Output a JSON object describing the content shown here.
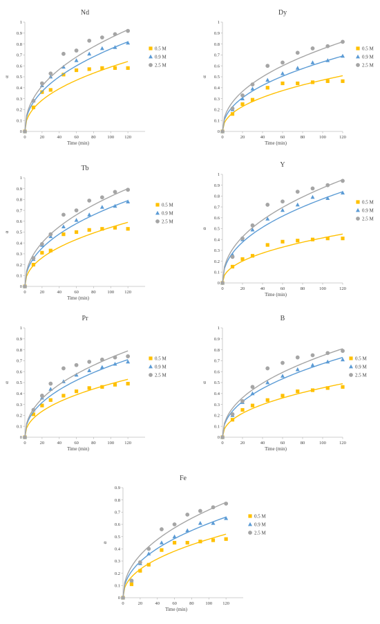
{
  "chart_data": [
    {
      "type": "scatter",
      "title": "Nd",
      "xlabel": "Time (min)",
      "ylabel": "α",
      "xlim": [
        0,
        140
      ],
      "ylim": [
        0,
        1
      ],
      "xticks": [
        "0",
        "20",
        "40",
        "60",
        "80",
        "100",
        "120"
      ],
      "yticks": [
        "0",
        "0.1",
        "0.2",
        "0.3",
        "0.4",
        "0.5",
        "0.6",
        "0.7",
        "0.8",
        "0.9",
        "1"
      ],
      "legend_position": "right",
      "series": [
        {
          "name": "0.5 M",
          "marker": "square",
          "color": "#FFC000",
          "x": [
            0,
            10,
            20,
            30,
            45,
            60,
            75,
            90,
            105,
            120
          ],
          "y": [
            0,
            0.22,
            0.36,
            0.38,
            0.52,
            0.56,
            0.57,
            0.58,
            0.58,
            0.58
          ],
          "fit_end": 0.64
        },
        {
          "name": "0.9 M",
          "marker": "triangle",
          "color": "#5B9BD5",
          "x": [
            0,
            10,
            20,
            30,
            45,
            60,
            75,
            90,
            105,
            120
          ],
          "y": [
            0,
            0.28,
            0.42,
            0.5,
            0.59,
            0.65,
            0.71,
            0.76,
            0.77,
            0.81
          ],
          "fit_end": 0.82
        },
        {
          "name": "2.5 M",
          "marker": "circle",
          "color": "#A5A5A5",
          "x": [
            0,
            10,
            20,
            30,
            45,
            60,
            75,
            90,
            105,
            120
          ],
          "y": [
            0,
            0.28,
            0.44,
            0.53,
            0.71,
            0.74,
            0.83,
            0.86,
            0.89,
            0.92
          ],
          "fit_end": 0.93
        }
      ]
    },
    {
      "type": "scatter",
      "title": "Dy",
      "xlabel": "Time (min)",
      "ylabel": "α",
      "xlim": [
        0,
        120
      ],
      "ylim": [
        0,
        1
      ],
      "xticks": [
        "0",
        "20",
        "40",
        "60",
        "80",
        "100",
        "120"
      ],
      "yticks": [
        "0",
        "0.1",
        "0.2",
        "0.3",
        "0.4",
        "0.5",
        "0.6",
        "0.7",
        "0.8",
        "0.9",
        "1"
      ],
      "legend_position": "right",
      "series": [
        {
          "name": "0.5 M",
          "marker": "square",
          "color": "#FFC000",
          "x": [
            0,
            10,
            20,
            30,
            45,
            60,
            75,
            90,
            105,
            120
          ],
          "y": [
            0,
            0.16,
            0.25,
            0.29,
            0.4,
            0.44,
            0.44,
            0.45,
            0.46,
            0.46
          ],
          "fit_end": 0.51
        },
        {
          "name": "0.9 M",
          "marker": "triangle",
          "color": "#5B9BD5",
          "x": [
            0,
            10,
            20,
            30,
            45,
            60,
            75,
            90,
            105,
            120
          ],
          "y": [
            0,
            0.2,
            0.3,
            0.39,
            0.47,
            0.53,
            0.58,
            0.63,
            0.65,
            0.69
          ],
          "fit_end": 0.69
        },
        {
          "name": "2.5 M",
          "marker": "circle",
          "color": "#A5A5A5",
          "x": [
            0,
            10,
            20,
            30,
            45,
            60,
            75,
            90,
            105,
            120
          ],
          "y": [
            0,
            0.21,
            0.33,
            0.43,
            0.6,
            0.63,
            0.72,
            0.76,
            0.78,
            0.82
          ],
          "fit_end": 0.82
        }
      ]
    },
    {
      "type": "scatter",
      "title": "Tb",
      "xlabel": "Time (min)",
      "ylabel": "α",
      "xlim": [
        0,
        140
      ],
      "ylim": [
        0,
        1
      ],
      "xticks": [
        "0",
        "20",
        "40",
        "60",
        "80",
        "100",
        "120"
      ],
      "yticks": [
        "0",
        "0.1",
        "0.2",
        "0.3",
        "0.4",
        "0.5",
        "0.6",
        "0.7",
        "0.8",
        "0.9",
        "1"
      ],
      "legend_position": "right",
      "series": [
        {
          "name": "0.5 M",
          "marker": "square",
          "color": "#FFC000",
          "x": [
            0,
            10,
            20,
            30,
            45,
            60,
            75,
            90,
            105,
            120
          ],
          "y": [
            0,
            0.2,
            0.31,
            0.33,
            0.48,
            0.5,
            0.52,
            0.53,
            0.54,
            0.53
          ],
          "fit_end": 0.59
        },
        {
          "name": "0.9 M",
          "marker": "triangle",
          "color": "#5B9BD5",
          "x": [
            0,
            10,
            20,
            30,
            45,
            60,
            75,
            90,
            105,
            120
          ],
          "y": [
            0,
            0.25,
            0.38,
            0.46,
            0.55,
            0.61,
            0.66,
            0.73,
            0.74,
            0.78
          ],
          "fit_end": 0.79
        },
        {
          "name": "2.5 M",
          "marker": "circle",
          "color": "#A5A5A5",
          "x": [
            0,
            10,
            20,
            30,
            45,
            60,
            75,
            90,
            105,
            120
          ],
          "y": [
            0,
            0.26,
            0.39,
            0.48,
            0.66,
            0.7,
            0.79,
            0.82,
            0.87,
            0.89
          ],
          "fit_end": 0.9
        }
      ]
    },
    {
      "type": "scatter",
      "title": "Y",
      "xlabel": "Time (min)",
      "ylabel": "α",
      "xlim": [
        0,
        120
      ],
      "ylim": [
        0,
        1
      ],
      "xticks": [
        "0",
        "20",
        "40",
        "60",
        "80",
        "100",
        "120"
      ],
      "yticks": [
        "0",
        "0.1",
        "0.2",
        "0.3",
        "0.4",
        "0.5",
        "0.6",
        "0.7",
        "0.8",
        "0.9",
        "1"
      ],
      "legend_position": "right",
      "series": [
        {
          "name": "0.5 M",
          "marker": "square",
          "color": "#FFC000",
          "x": [
            0,
            10,
            20,
            30,
            45,
            60,
            75,
            90,
            105,
            120
          ],
          "y": [
            0,
            0.15,
            0.22,
            0.25,
            0.35,
            0.38,
            0.39,
            0.4,
            0.41,
            0.41
          ],
          "fit_end": 0.45
        },
        {
          "name": "0.9 M",
          "marker": "triangle",
          "color": "#5B9BD5",
          "x": [
            0,
            10,
            20,
            30,
            45,
            60,
            75,
            90,
            105,
            120
          ],
          "y": [
            0,
            0.26,
            0.4,
            0.49,
            0.59,
            0.67,
            0.72,
            0.79,
            0.78,
            0.83
          ],
          "fit_end": 0.84
        },
        {
          "name": "2.5 M",
          "marker": "circle",
          "color": "#A5A5A5",
          "x": [
            0,
            10,
            20,
            30,
            45,
            60,
            75,
            90,
            105,
            120
          ],
          "y": [
            0,
            0.24,
            0.41,
            0.53,
            0.72,
            0.75,
            0.84,
            0.87,
            0.9,
            0.94
          ],
          "fit_end": 0.95
        }
      ]
    },
    {
      "type": "scatter",
      "title": "Pr",
      "xlabel": "Time (min)",
      "ylabel": "α",
      "xlim": [
        0,
        140
      ],
      "ylim": [
        0,
        1
      ],
      "xticks": [
        "0",
        "20",
        "40",
        "60",
        "80",
        "100",
        "120"
      ],
      "yticks": [
        "0",
        "0.1",
        "0.2",
        "0.3",
        "0.4",
        "0.5",
        "0.6",
        "0.7",
        "0.8",
        "0.9",
        "1"
      ],
      "legend_position": "right",
      "series": [
        {
          "name": "0.5 M",
          "marker": "square",
          "color": "#FFC000",
          "x": [
            0,
            10,
            20,
            30,
            45,
            60,
            75,
            90,
            105,
            120
          ],
          "y": [
            0,
            0.21,
            0.29,
            0.34,
            0.38,
            0.42,
            0.45,
            0.46,
            0.48,
            0.49
          ],
          "fit_end": 0.53
        },
        {
          "name": "0.9 M",
          "marker": "triangle",
          "color": "#5B9BD5",
          "x": [
            0,
            10,
            20,
            30,
            45,
            60,
            75,
            90,
            105,
            120
          ],
          "y": [
            0,
            0.25,
            0.36,
            0.44,
            0.51,
            0.57,
            0.61,
            0.64,
            0.67,
            0.69
          ],
          "fit_end": 0.71
        },
        {
          "name": "2.5 M",
          "marker": "circle",
          "color": "#A5A5A5",
          "x": [
            0,
            10,
            20,
            30,
            45,
            60,
            75,
            90,
            105,
            120
          ],
          "y": [
            0,
            0.25,
            0.38,
            0.49,
            0.63,
            0.66,
            0.69,
            0.71,
            0.73,
            0.74
          ],
          "fit_end": 0.79
        }
      ]
    },
    {
      "type": "scatter",
      "title": "B",
      "xlabel": "Time (min)",
      "ylabel": "α",
      "xlim": [
        0,
        120
      ],
      "ylim": [
        0,
        1
      ],
      "xticks": [
        "0",
        "20",
        "40",
        "60",
        "80",
        "100",
        "120"
      ],
      "yticks": [
        "0",
        "0.1",
        "0.2",
        "0.3",
        "0.4",
        "0.5",
        "0.6",
        "0.7",
        "0.8",
        "0.9",
        "1"
      ],
      "legend_position": "right",
      "series": [
        {
          "name": "0.5 M",
          "marker": "square",
          "color": "#FFC000",
          "x": [
            0,
            10,
            20,
            30,
            45,
            60,
            75,
            90,
            105,
            120
          ],
          "y": [
            0,
            0.16,
            0.25,
            0.29,
            0.34,
            0.38,
            0.42,
            0.43,
            0.45,
            0.46
          ],
          "fit_end": 0.49
        },
        {
          "name": "0.9 M",
          "marker": "triangle",
          "color": "#5B9BD5",
          "x": [
            0,
            10,
            20,
            30,
            45,
            60,
            75,
            90,
            105,
            120
          ],
          "y": [
            0,
            0.2,
            0.32,
            0.4,
            0.5,
            0.56,
            0.62,
            0.66,
            0.69,
            0.71
          ],
          "fit_end": 0.73
        },
        {
          "name": "2.5 M",
          "marker": "circle",
          "color": "#A5A5A5",
          "x": [
            0,
            10,
            20,
            30,
            45,
            60,
            75,
            90,
            105,
            120
          ],
          "y": [
            0,
            0.21,
            0.33,
            0.46,
            0.63,
            0.68,
            0.73,
            0.75,
            0.77,
            0.79
          ],
          "fit_end": 0.81
        }
      ]
    },
    {
      "type": "scatter",
      "title": "Fe",
      "xlabel": "Time (min)",
      "ylabel": "α",
      "xlim": [
        0,
        140
      ],
      "ylim": [
        0,
        0.9
      ],
      "xticks": [
        "0",
        "20",
        "40",
        "60",
        "80",
        "100",
        "120"
      ],
      "yticks": [
        "0",
        "0.1",
        "0.2",
        "0.3",
        "0.4",
        "0.5",
        "0.6",
        "0.7",
        "0.8",
        "0.9"
      ],
      "legend_position": "right",
      "series": [
        {
          "name": "0.5 M",
          "marker": "square",
          "color": "#FFC000",
          "x": [
            0,
            10,
            20,
            30,
            45,
            60,
            75,
            90,
            105,
            120
          ],
          "y": [
            0,
            0.11,
            0.22,
            0.27,
            0.39,
            0.45,
            0.45,
            0.46,
            0.47,
            0.48
          ],
          "fit_end": 0.52
        },
        {
          "name": "0.9 M",
          "marker": "triangle",
          "color": "#5B9BD5",
          "x": [
            0,
            10,
            20,
            30,
            45,
            60,
            75,
            90,
            105,
            120
          ],
          "y": [
            0,
            0.14,
            0.28,
            0.36,
            0.45,
            0.5,
            0.55,
            0.61,
            0.61,
            0.65
          ],
          "fit_end": 0.66
        },
        {
          "name": "2.5 M",
          "marker": "circle",
          "color": "#A5A5A5",
          "x": [
            0,
            10,
            20,
            30,
            45,
            60,
            75,
            90,
            105,
            120
          ],
          "y": [
            0,
            0.14,
            0.29,
            0.4,
            0.56,
            0.6,
            0.68,
            0.71,
            0.74,
            0.77
          ],
          "fit_end": 0.78
        }
      ]
    }
  ]
}
